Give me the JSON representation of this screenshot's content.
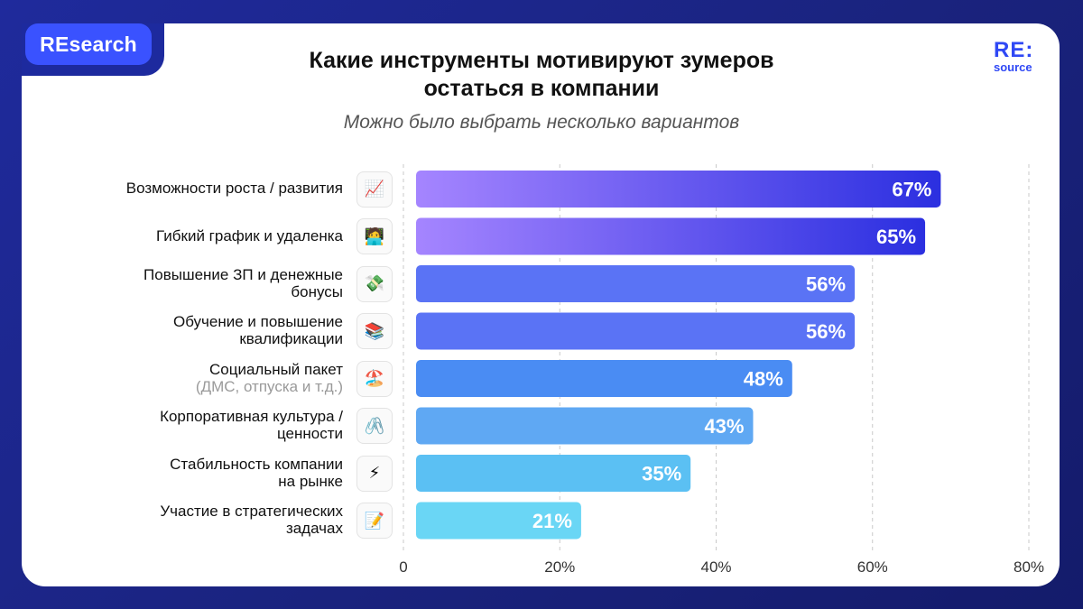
{
  "badge": "REsearch",
  "logo": {
    "line1": "RE:",
    "line2": "source"
  },
  "title_line1": "Какие инструменты мотивируют зумеров",
  "title_line2": "остаться в компании",
  "subtitle": "Можно было выбрать несколько вариантов",
  "colors": {
    "bar_start": "#a585ff",
    "bar_end": "#2b2fe0",
    "card": "#ffffff",
    "background": "#1a237e"
  },
  "categories": [
    {
      "line1": "Возможности роста / развития",
      "line2": "",
      "note": "",
      "icon": "chart-up-icon",
      "glyph": "📈"
    },
    {
      "line1": "Гибкий график и удаленка",
      "line2": "",
      "note": "",
      "icon": "technologist-icon",
      "glyph": "🧑‍💻"
    },
    {
      "line1": "Повышение ЗП и денежные",
      "line2": "бонусы",
      "note": "",
      "icon": "money-wings-icon",
      "glyph": "💸"
    },
    {
      "line1": "Обучение и повышение",
      "line2": "квалификации",
      "note": "",
      "icon": "books-icon",
      "glyph": "📚"
    },
    {
      "line1": "Социальный пакет",
      "line2": "",
      "note": "(ДМС, отпуска и т.д.)",
      "icon": "beach-umbrella-icon",
      "glyph": "🏖️"
    },
    {
      "line1": "Корпоративная культура /",
      "line2": "ценности",
      "note": "",
      "icon": "paperclips-icon",
      "glyph": "🖇️"
    },
    {
      "line1": "Стабильность компании",
      "line2": "на рынке",
      "note": "",
      "icon": "lightning-icon",
      "glyph": "⚡"
    },
    {
      "line1": "Участие в стратегических",
      "line2": "задачах",
      "note": "",
      "icon": "memo-icon",
      "glyph": "📝"
    }
  ],
  "chart_data": {
    "type": "bar",
    "orientation": "horizontal",
    "title": "Какие инструменты мотивируют зумеров остаться в компании",
    "subtitle": "Можно было выбрать несколько вариантов",
    "categories": [
      "Возможности роста / развития",
      "Гибкий график и удаленка",
      "Повышение ЗП и денежные бонусы",
      "Обучение и повышение квалификации",
      "Социальный пакет (ДМС, отпуска и т.д.)",
      "Корпоративная культура / ценности",
      "Стабильность компании на рынке",
      "Участие в стратегических задачах"
    ],
    "values": [
      67,
      65,
      56,
      56,
      48,
      43,
      35,
      21
    ],
    "value_labels": [
      "67%",
      "65%",
      "56%",
      "56%",
      "48%",
      "43%",
      "35%",
      "21%"
    ],
    "xlim": [
      0,
      80
    ],
    "xticks": [
      0,
      20,
      40,
      60,
      80
    ],
    "xtick_labels": [
      "0",
      "20%",
      "40%",
      "60%",
      "80%"
    ],
    "grid": true,
    "xlabel": "",
    "ylabel": ""
  }
}
